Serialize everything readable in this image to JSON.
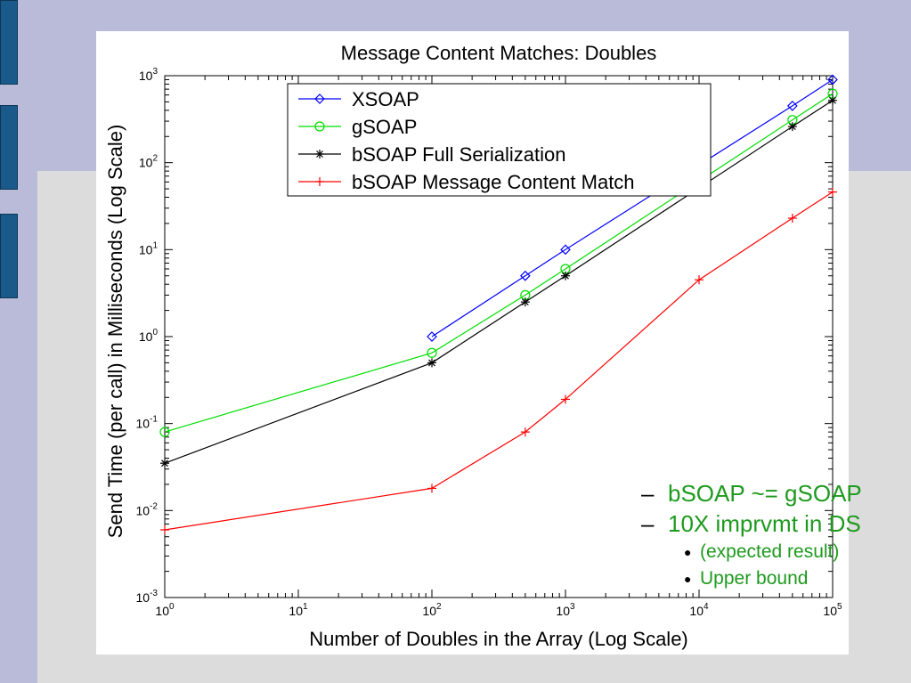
{
  "slide": {
    "colors": {
      "band": "#b9bbd9",
      "tab": "#1a5a8a",
      "background": "#dcdcdc",
      "text_green": "#1e9a1e"
    },
    "bullets": {
      "level1": [
        "bSOAP ~= gSOAP",
        "10X imprvmt in DS"
      ],
      "level2": [
        "(expected result)",
        "Upper bound"
      ]
    }
  },
  "chart_data": {
    "type": "line",
    "title": "Message Content Matches: Doubles",
    "xlabel": "Number of Doubles in the Array (Log Scale)",
    "ylabel": "Send Time (per call) in Milliseconds (Log Scale)",
    "xscale": "log",
    "yscale": "log",
    "xlim": [
      1,
      100000
    ],
    "ylim": [
      0.001,
      1000
    ],
    "x_ticks": [
      {
        "value": 1,
        "base": "10",
        "exp": "0"
      },
      {
        "value": 10,
        "base": "10",
        "exp": "1"
      },
      {
        "value": 100,
        "base": "10",
        "exp": "2"
      },
      {
        "value": 1000,
        "base": "10",
        "exp": "3"
      },
      {
        "value": 10000,
        "base": "10",
        "exp": "4"
      },
      {
        "value": 100000,
        "base": "10",
        "exp": "5"
      }
    ],
    "y_ticks": [
      {
        "value": 0.001,
        "base": "10",
        "exp": "-3"
      },
      {
        "value": 0.01,
        "base": "10",
        "exp": "-2"
      },
      {
        "value": 0.1,
        "base": "10",
        "exp": "-1"
      },
      {
        "value": 1,
        "base": "10",
        "exp": "0"
      },
      {
        "value": 10,
        "base": "10",
        "exp": "1"
      },
      {
        "value": 100,
        "base": "10",
        "exp": "2"
      },
      {
        "value": 1000,
        "base": "10",
        "exp": "3"
      }
    ],
    "grid": false,
    "legend_position": "top-center",
    "series": [
      {
        "name": "XSOAP",
        "color": "#0000ff",
        "marker": "diamond",
        "points": [
          [
            100,
            1.0
          ],
          [
            500,
            5.0
          ],
          [
            1000,
            10.0
          ],
          [
            50000,
            450
          ],
          [
            100000,
            900
          ]
        ]
      },
      {
        "name": "gSOAP",
        "color": "#00dd00",
        "marker": "circle",
        "points": [
          [
            1,
            0.08
          ],
          [
            100,
            0.65
          ],
          [
            500,
            3.0
          ],
          [
            1000,
            6.0
          ],
          [
            50000,
            310
          ],
          [
            100000,
            620
          ]
        ]
      },
      {
        "name": "bSOAP Full Serialization",
        "color": "#000000",
        "marker": "star",
        "points": [
          [
            1,
            0.035
          ],
          [
            100,
            0.5
          ],
          [
            500,
            2.5
          ],
          [
            1000,
            5.0
          ],
          [
            50000,
            260
          ],
          [
            100000,
            520
          ]
        ]
      },
      {
        "name": "bSOAP Message Content Match",
        "color": "#ff0000",
        "marker": "plus",
        "points": [
          [
            1,
            0.006
          ],
          [
            100,
            0.018
          ],
          [
            500,
            0.08
          ],
          [
            1000,
            0.19
          ],
          [
            10000,
            4.5
          ],
          [
            50000,
            23
          ],
          [
            100000,
            46
          ]
        ]
      }
    ]
  }
}
